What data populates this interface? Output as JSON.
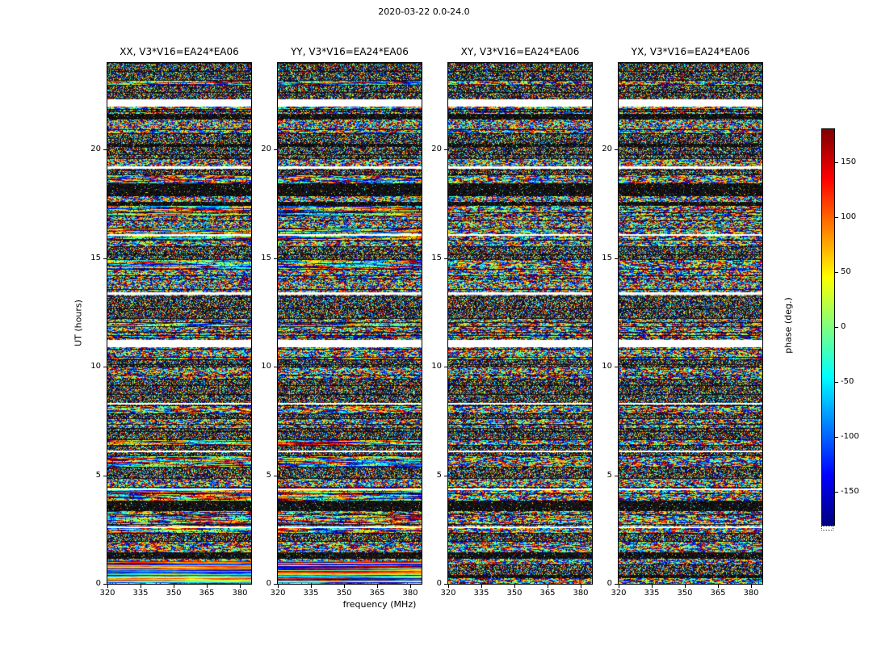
{
  "chart_data": {
    "type": "heatmap",
    "title": "2020-03-22 0.0-24.0",
    "xlabel": "frequency (MHz)",
    "ylabel": "UT (hours)",
    "panels": [
      {
        "title": "XX, V3*V16=EA24*EA06"
      },
      {
        "title": "YY, V3*V16=EA24*EA06"
      },
      {
        "title": "XY, V3*V16=EA24*EA06"
      },
      {
        "title": "YX, V3*V16=EA24*EA06"
      }
    ],
    "x_ticks": [
      320,
      335,
      350,
      365,
      380
    ],
    "y_ticks": [
      0,
      5,
      10,
      15,
      20
    ],
    "xlim": [
      320,
      385
    ],
    "ylim": [
      0,
      24
    ],
    "colorbar": {
      "label": "phase (deg.)",
      "ticks": [
        150,
        100,
        50,
        0,
        -50,
        -100,
        -150
      ],
      "vmin": -180,
      "vmax": 180,
      "colormap": "jet"
    },
    "data_gaps": [
      {
        "ut": 22.0,
        "span_hours": 0.33
      },
      {
        "ut": 19.15,
        "span_hours": 0.1
      },
      {
        "ut": 16.05,
        "span_hours": 0.08
      },
      {
        "ut": 13.35,
        "span_hours": 0.1
      },
      {
        "ut": 10.9,
        "span_hours": 0.33
      },
      {
        "ut": 8.25,
        "span_hours": 0.08
      },
      {
        "ut": 6.05,
        "span_hours": 0.08
      },
      {
        "ut": 4.3,
        "span_hours": 0.08
      },
      {
        "ut": 2.55,
        "span_hours": 0.08
      }
    ],
    "content_note": "four waterfall panels of interferometric visibility phase noise spanning -180..180 deg vs frequency (x) and UT time (y); thin dark horizontal separator lines between integrations; white rows are data gaps"
  }
}
